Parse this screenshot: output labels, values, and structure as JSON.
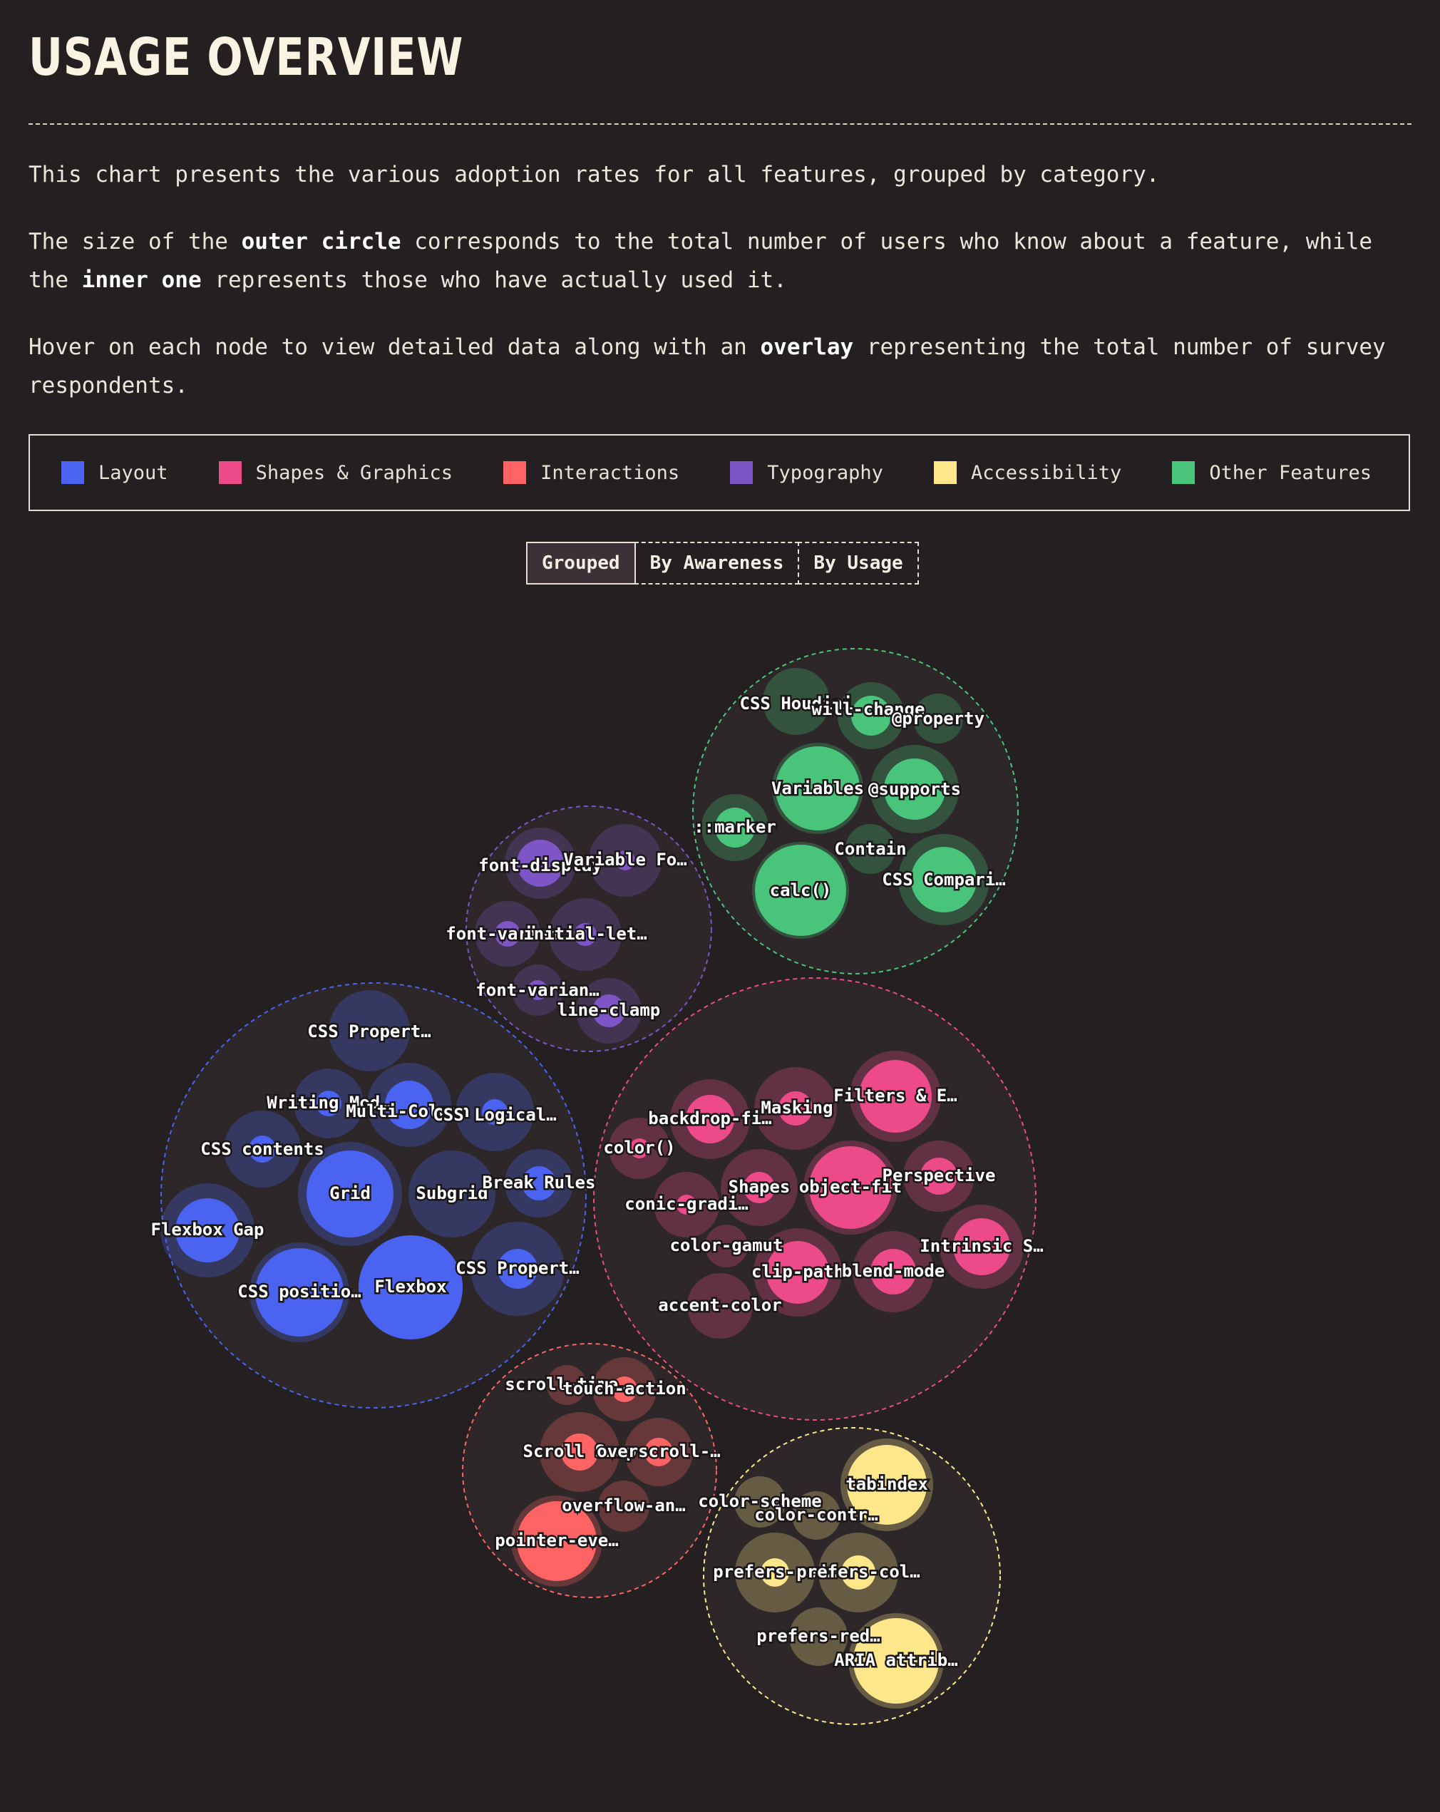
{
  "title": "USAGE OVERVIEW",
  "intro": {
    "p1": "This chart presents the various adoption rates for all features, grouped by category.",
    "p2a": "The size of the ",
    "p2b": "outer circle",
    "p2c": " corresponds to the total number of users who know about a feature, while the ",
    "p2d": "inner one",
    "p2e": " represents those who have actually used it.",
    "p3a": "Hover on each node to view detailed data along with an ",
    "p3b": "overlay",
    "p3c": " representing the total number of survey respondents."
  },
  "legend": [
    {
      "label": "Layout",
      "color": "#4a63f0"
    },
    {
      "label": "Shapes & Graphics",
      "color": "#ec4a88"
    },
    {
      "label": "Interactions",
      "color": "#fe6464"
    },
    {
      "label": "Typography",
      "color": "#7e55c7"
    },
    {
      "label": "Accessibility",
      "color": "#fde78a"
    },
    {
      "label": "Other Features",
      "color": "#48c57a"
    }
  ],
  "tabs": [
    {
      "label": "Grouped",
      "active": true
    },
    {
      "label": "By Awareness",
      "active": false
    },
    {
      "label": "By Usage",
      "active": false
    }
  ],
  "chart_data": {
    "type": "bubble",
    "groups": [
      {
        "category": "Other Features",
        "color": "#48c57a",
        "features": [
          {
            "label": "CSS Houdini",
            "awareness": 47,
            "usage": 0
          },
          {
            "label": "will-change",
            "awareness": 47,
            "usage": 28
          },
          {
            "label": "@property",
            "awareness": 35,
            "usage": 0
          },
          {
            "label": "Variables",
            "awareness": 64,
            "usage": 59
          },
          {
            "label": "@supports",
            "awareness": 62,
            "usage": 43
          },
          {
            "label": "::marker",
            "awareness": 47,
            "usage": 28
          },
          {
            "label": "Contain",
            "awareness": 35,
            "usage": 0
          },
          {
            "label": "calc()",
            "awareness": 68,
            "usage": 64
          },
          {
            "label": "CSS Comparison Functions",
            "awareness": 64,
            "usage": 46
          }
        ]
      },
      {
        "category": "Typography",
        "color": "#7e55c7",
        "features": [
          {
            "label": "font-display",
            "awareness": 50,
            "usage": 33
          },
          {
            "label": "Variable Fonts",
            "awareness": 51,
            "usage": 14
          },
          {
            "label": "font-variant-numeric",
            "awareness": 46,
            "usage": 18
          },
          {
            "label": "initial-letter",
            "awareness": 51,
            "usage": 16
          },
          {
            "label": "font-variant-east-asian",
            "awareness": 36,
            "usage": 14
          },
          {
            "label": "line-clamp",
            "awareness": 46,
            "usage": 23
          }
        ]
      },
      {
        "category": "Layout",
        "color": "#4a63f0",
        "features": [
          {
            "label": "CSS Properties and Values",
            "awareness": 57,
            "usage": 0
          },
          {
            "label": "Writing Modes",
            "awareness": 49,
            "usage": 18
          },
          {
            "label": "Multi-Column",
            "awareness": 59,
            "usage": 34
          },
          {
            "label": "CSS Logical Properties",
            "awareness": 55,
            "usage": 18
          },
          {
            "label": "CSS contents",
            "awareness": 54,
            "usage": 19
          },
          {
            "label": "Grid",
            "awareness": 73,
            "usage": 61
          },
          {
            "label": "Subgrid",
            "awareness": 61,
            "usage": 0
          },
          {
            "label": "Break Rules",
            "awareness": 48,
            "usage": 24
          },
          {
            "label": "Flexbox Gap",
            "awareness": 66,
            "usage": 45
          },
          {
            "label": "CSS position: sticky",
            "awareness": 70,
            "usage": 62
          },
          {
            "label": "Flexbox",
            "awareness": 73,
            "usage": 73
          },
          {
            "label": "CSS Properties",
            "awareness": 66,
            "usage": 28
          }
        ]
      },
      {
        "category": "Shapes & Graphics",
        "color": "#ec4a88",
        "features": [
          {
            "label": "backdrop-filter",
            "awareness": 56,
            "usage": 34
          },
          {
            "label": "Masking",
            "awareness": 58,
            "usage": 24
          },
          {
            "label": "Filters & Effects",
            "awareness": 64,
            "usage": 51
          },
          {
            "label": "color()",
            "awareness": 43,
            "usage": 14
          },
          {
            "label": "Shapes",
            "awareness": 54,
            "usage": 22
          },
          {
            "label": "object-fit",
            "awareness": 66,
            "usage": 58
          },
          {
            "label": "Perspective",
            "awareness": 50,
            "usage": 26
          },
          {
            "label": "conic-gradient",
            "awareness": 46,
            "usage": 14
          },
          {
            "label": "color-gamut",
            "awareness": 30,
            "usage": 0
          },
          {
            "label": "clip-path",
            "awareness": 62,
            "usage": 44
          },
          {
            "label": "blend-mode",
            "awareness": 57,
            "usage": 32
          },
          {
            "label": "Intrinsic Sizing",
            "awareness": 59,
            "usage": 40
          },
          {
            "label": "accent-color",
            "awareness": 46,
            "usage": 0
          }
        ]
      },
      {
        "category": "Interactions",
        "color": "#fe6464",
        "features": [
          {
            "label": "scroll-timeline",
            "awareness": 28,
            "usage": 0
          },
          {
            "label": "touch-action",
            "awareness": 45,
            "usage": 18
          },
          {
            "label": "Scroll Snap",
            "awareness": 56,
            "usage": 26
          },
          {
            "label": "overscroll-behavior",
            "awareness": 48,
            "usage": 20
          },
          {
            "label": "overflow-anchor",
            "awareness": 36,
            "usage": 0
          },
          {
            "label": "pointer-events",
            "awareness": 64,
            "usage": 56
          }
        ]
      },
      {
        "category": "Accessibility",
        "color": "#fde78a",
        "features": [
          {
            "label": "tabindex",
            "awareness": 65,
            "usage": 56
          },
          {
            "label": "color-scheme",
            "awareness": 36,
            "usage": 0
          },
          {
            "label": "color-contrast()",
            "awareness": 34,
            "usage": 0
          },
          {
            "label": "prefers-reduced-motion",
            "awareness": 56,
            "usage": 20
          },
          {
            "label": "prefers-color-scheme",
            "awareness": 56,
            "usage": 24
          },
          {
            "label": "prefers-reduced-data",
            "awareness": 41,
            "usage": 0
          },
          {
            "label": "ARIA attributes",
            "awareness": 67,
            "usage": 60
          }
        ]
      }
    ]
  }
}
